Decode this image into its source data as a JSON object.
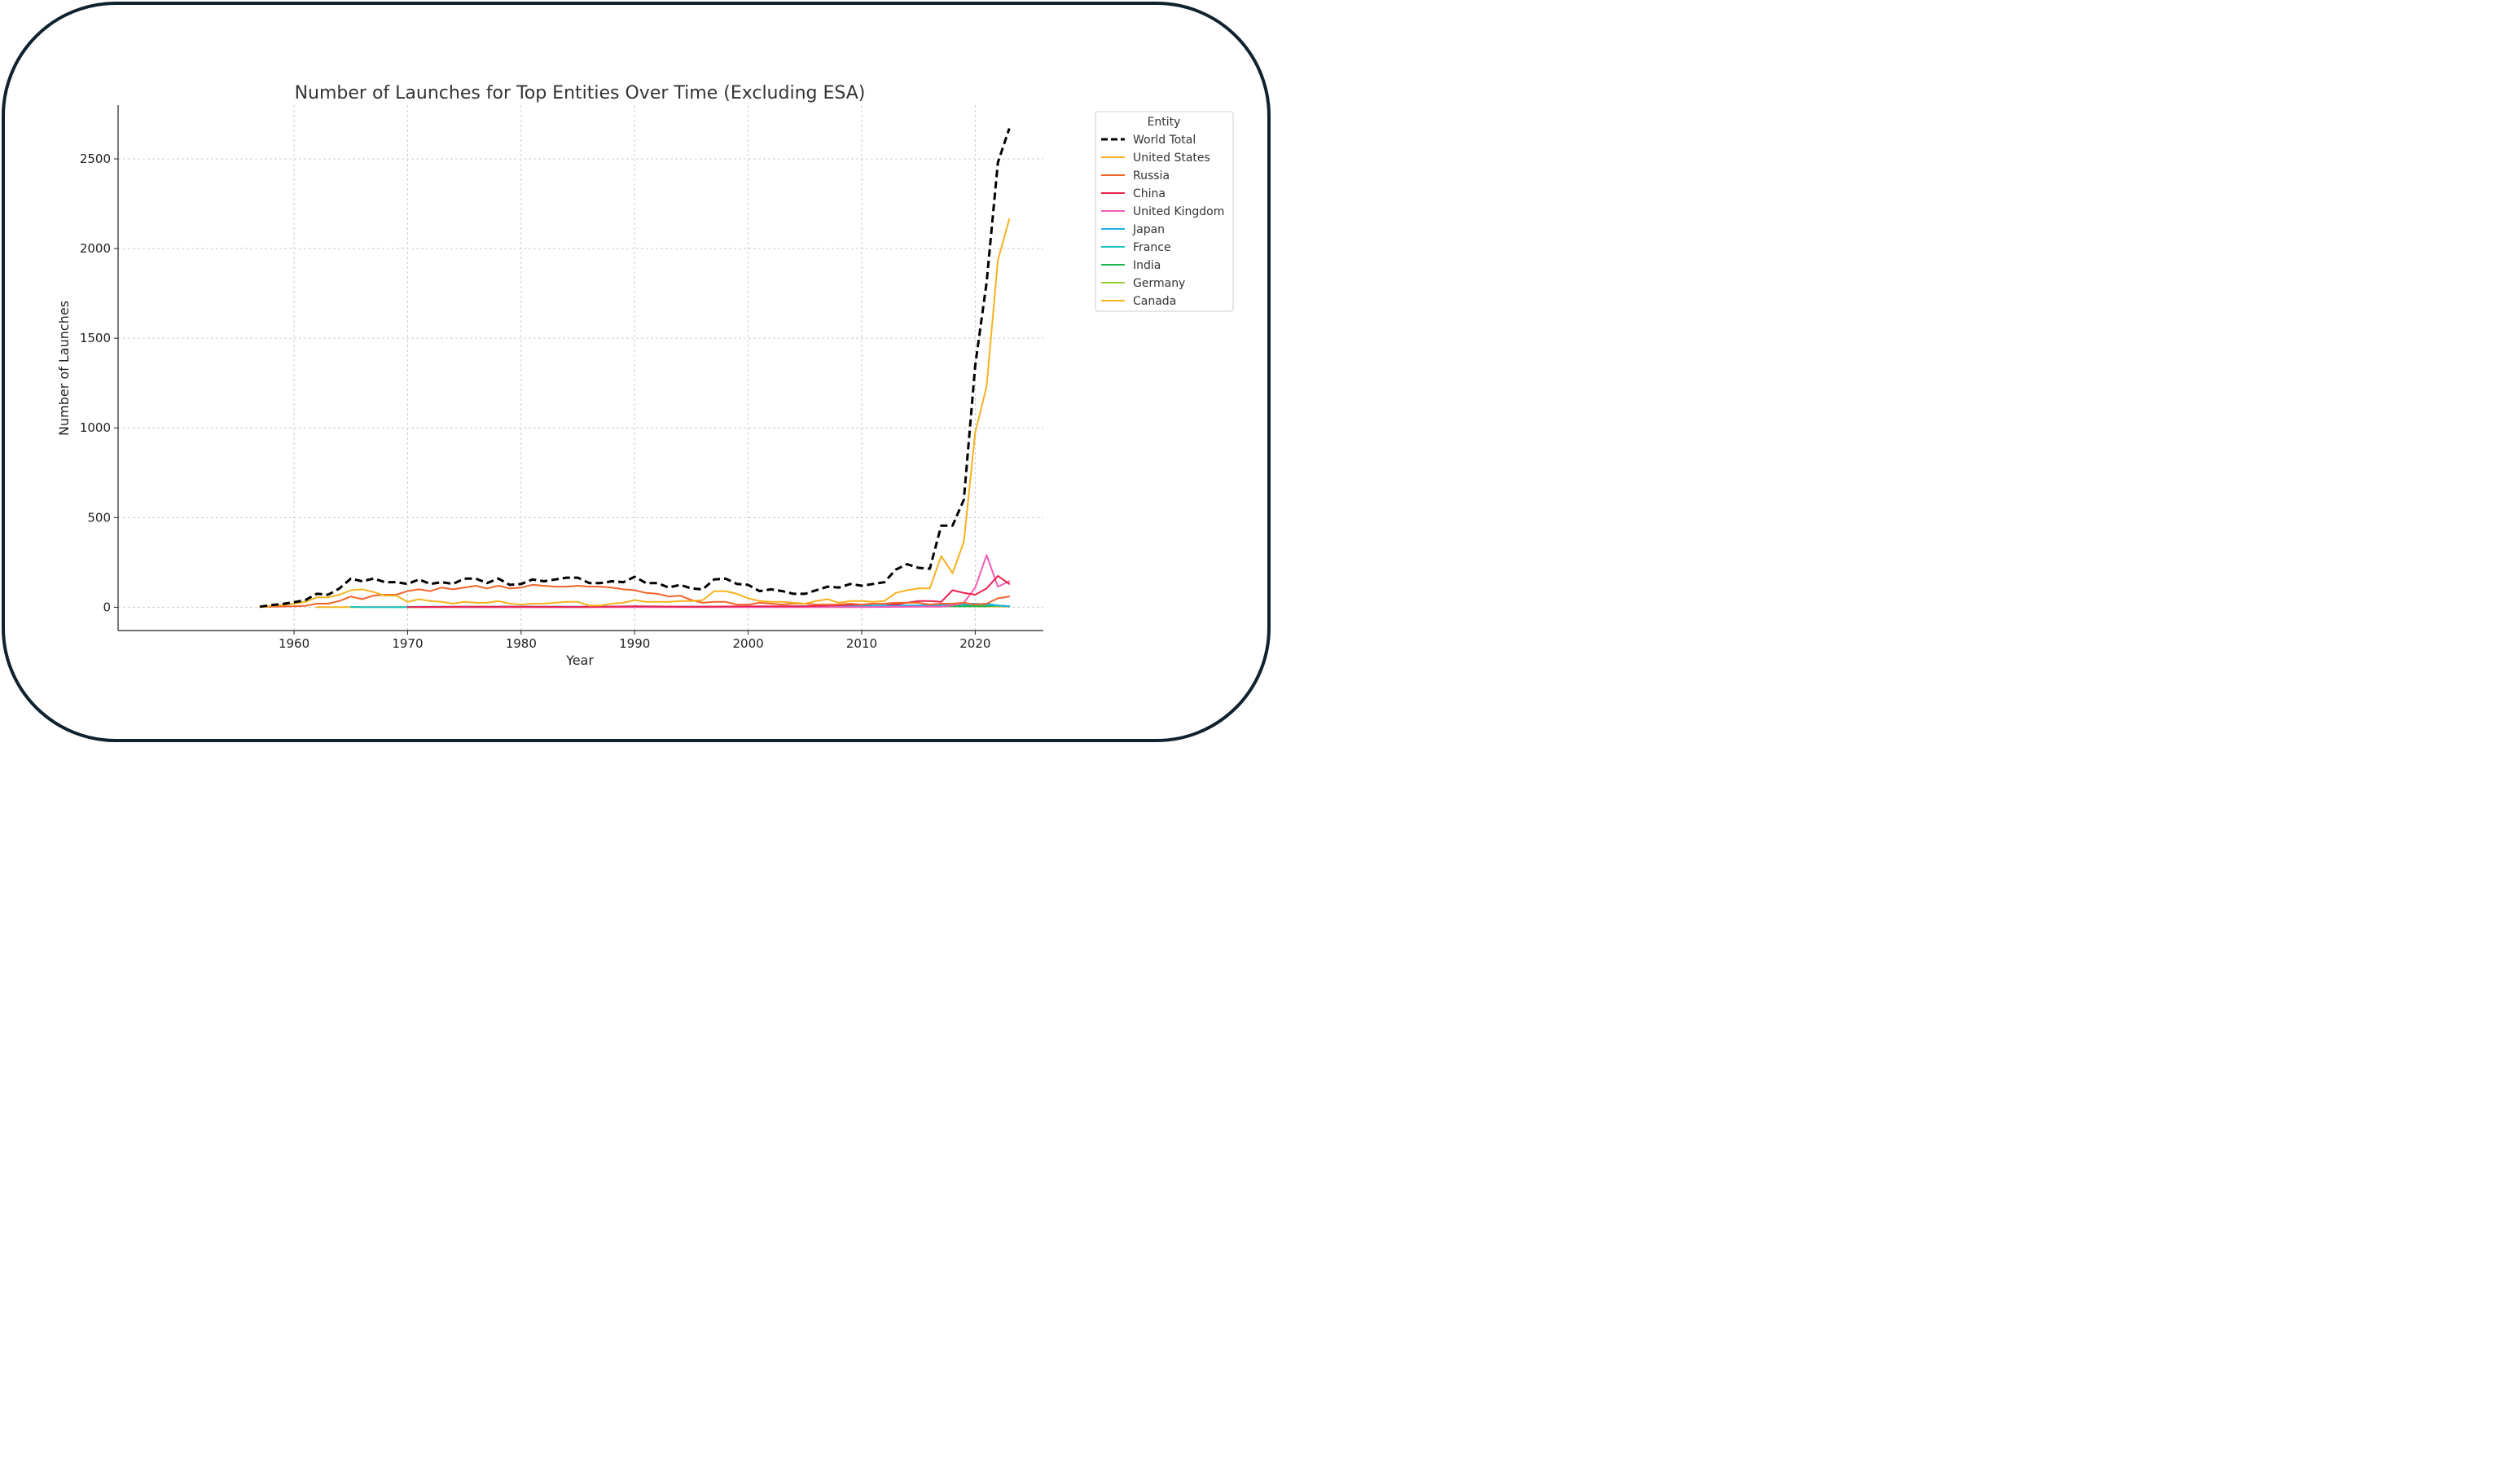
{
  "chart_data": {
    "type": "line",
    "title": "Number of Launches for Top Entities Over Time (Excluding ESA)",
    "xlabel": "Year",
    "ylabel": "Number of Launches",
    "xlim": [
      1944.5,
      2026
    ],
    "ylim": [
      -130,
      2800
    ],
    "xticks": [
      1960,
      1970,
      1980,
      1990,
      2000,
      2010,
      2020
    ],
    "yticks": [
      0,
      500,
      1000,
      1500,
      2000,
      2500
    ],
    "grid": true,
    "legend": {
      "title": "Entity",
      "position": "upper right, outside plot"
    },
    "series": [
      {
        "name": "World Total",
        "color": "#000000",
        "dash": true,
        "width": 3,
        "x": [
          1957,
          1958,
          1959,
          1960,
          1961,
          1962,
          1963,
          1964,
          1965,
          1966,
          1967,
          1968,
          1969,
          1970,
          1971,
          1972,
          1973,
          1974,
          1975,
          1976,
          1977,
          1978,
          1979,
          1980,
          1981,
          1982,
          1983,
          1984,
          1985,
          1986,
          1987,
          1988,
          1989,
          1990,
          1991,
          1992,
          1993,
          1994,
          1995,
          1996,
          1997,
          1998,
          1999,
          2000,
          2001,
          2002,
          2003,
          2004,
          2005,
          2006,
          2007,
          2008,
          2009,
          2010,
          2011,
          2012,
          2013,
          2014,
          2015,
          2016,
          2017,
          2018,
          2019,
          2020,
          2021,
          2022,
          2023
        ],
        "y": [
          3,
          12,
          18,
          28,
          40,
          75,
          70,
          105,
          160,
          145,
          160,
          140,
          140,
          130,
          155,
          130,
          140,
          130,
          160,
          160,
          135,
          160,
          125,
          130,
          155,
          145,
          155,
          165,
          165,
          135,
          135,
          145,
          140,
          170,
          135,
          135,
          110,
          125,
          105,
          100,
          155,
          160,
          130,
          125,
          90,
          100,
          90,
          75,
          75,
          95,
          115,
          110,
          130,
          120,
          130,
          140,
          210,
          240,
          220,
          215,
          455,
          455,
          600,
          1350,
          1810,
          2480,
          2670
        ]
      },
      {
        "name": "United States",
        "color": "#f5b21f",
        "width": 2,
        "x": [
          1957,
          1958,
          1959,
          1960,
          1961,
          1962,
          1963,
          1964,
          1965,
          1966,
          1967,
          1968,
          1969,
          1970,
          1971,
          1972,
          1973,
          1974,
          1975,
          1976,
          1977,
          1978,
          1979,
          1980,
          1981,
          1982,
          1983,
          1984,
          1985,
          1986,
          1987,
          1988,
          1989,
          1990,
          1991,
          1992,
          1993,
          1994,
          1995,
          1996,
          1997,
          1998,
          1999,
          2000,
          2001,
          2002,
          2003,
          2004,
          2005,
          2006,
          2007,
          2008,
          2009,
          2010,
          2011,
          2012,
          2013,
          2014,
          2015,
          2016,
          2017,
          2018,
          2019,
          2020,
          2021,
          2022,
          2023
        ],
        "y": [
          0,
          8,
          12,
          20,
          30,
          55,
          55,
          70,
          95,
          100,
          85,
          65,
          65,
          30,
          45,
          35,
          30,
          20,
          30,
          25,
          25,
          35,
          20,
          15,
          20,
          20,
          25,
          30,
          30,
          10,
          10,
          20,
          25,
          40,
          30,
          30,
          30,
          35,
          35,
          40,
          90,
          90,
          75,
          50,
          35,
          30,
          30,
          25,
          20,
          35,
          45,
          25,
          35,
          35,
          30,
          35,
          80,
          95,
          105,
          105,
          285,
          190,
          365,
          975,
          1230,
          1935,
          2165
        ]
      },
      {
        "name": "Russia",
        "color": "#f0642a",
        "width": 2,
        "x": [
          1957,
          1958,
          1959,
          1960,
          1961,
          1962,
          1963,
          1964,
          1965,
          1966,
          1967,
          1968,
          1969,
          1970,
          1971,
          1972,
          1973,
          1974,
          1975,
          1976,
          1977,
          1978,
          1979,
          1980,
          1981,
          1982,
          1983,
          1984,
          1985,
          1986,
          1987,
          1988,
          1989,
          1990,
          1991,
          1992,
          1993,
          1994,
          1995,
          1996,
          1997,
          1998,
          1999,
          2000,
          2001,
          2002,
          2003,
          2004,
          2005,
          2006,
          2007,
          2008,
          2009,
          2010,
          2011,
          2012,
          2013,
          2014,
          2015,
          2016,
          2017,
          2018,
          2019,
          2020,
          2021,
          2022,
          2023
        ],
        "y": [
          2,
          3,
          4,
          5,
          8,
          20,
          20,
          35,
          60,
          45,
          65,
          70,
          70,
          90,
          100,
          90,
          110,
          100,
          110,
          120,
          105,
          120,
          105,
          110,
          125,
          120,
          115,
          115,
          120,
          115,
          115,
          110,
          100,
          95,
          80,
          75,
          60,
          65,
          40,
          25,
          30,
          30,
          15,
          15,
          25,
          20,
          15,
          20,
          20,
          15,
          15,
          15,
          20,
          15,
          20,
          20,
          25,
          25,
          25,
          15,
          20,
          20,
          25,
          15,
          20,
          50,
          60
        ]
      },
      {
        "name": "China",
        "color": "#e8234e",
        "width": 2,
        "x": [
          1970,
          1975,
          1980,
          1985,
          1990,
          1995,
          2000,
          2005,
          2010,
          2011,
          2012,
          2013,
          2014,
          2015,
          2016,
          2017,
          2018,
          2019,
          2020,
          2021,
          2022,
          2023
        ],
        "y": [
          1,
          3,
          3,
          2,
          5,
          3,
          5,
          5,
          15,
          20,
          20,
          15,
          25,
          35,
          35,
          30,
          95,
          80,
          70,
          105,
          175,
          130
        ]
      },
      {
        "name": "United Kingdom",
        "color": "#f45bb8",
        "width": 2,
        "x": [
          1971,
          1980,
          1990,
          2000,
          2010,
          2015,
          2017,
          2018,
          2019,
          2020,
          2021,
          2022,
          2023
        ],
        "y": [
          1,
          0,
          1,
          1,
          1,
          3,
          3,
          10,
          25,
          110,
          290,
          115,
          145
        ]
      },
      {
        "name": "Japan",
        "color": "#1fb0e8",
        "width": 2,
        "x": [
          1970,
          1975,
          1977,
          1979,
          1985,
          1990,
          1995,
          2000,
          2005,
          2010,
          2015,
          2020,
          2022,
          2023
        ],
        "y": [
          2,
          3,
          3,
          4,
          3,
          5,
          3,
          2,
          5,
          10,
          10,
          20,
          10,
          5
        ]
      },
      {
        "name": "France",
        "color": "#19c2c2",
        "width": 2,
        "x": [
          1965,
          1966,
          1967,
          1970,
          1971,
          1975,
          1980,
          1985,
          1990,
          2000,
          2010,
          2015,
          2020,
          2021,
          2022,
          2023
        ],
        "y": [
          2,
          1,
          1,
          1,
          2,
          2,
          2,
          2,
          3,
          3,
          5,
          10,
          15,
          20,
          10,
          5
        ]
      },
      {
        "name": "India",
        "color": "#1db54f",
        "width": 2,
        "x": [
          1975,
          1980,
          1985,
          1990,
          1995,
          2000,
          2005,
          2010,
          2015,
          2020,
          2021,
          2022,
          2023
        ],
        "y": [
          1,
          2,
          1,
          3,
          2,
          3,
          5,
          5,
          5,
          5,
          5,
          10,
          5
        ]
      },
      {
        "name": "Germany",
        "color": "#9ac93a",
        "width": 2,
        "x": [
          1969,
          1970,
          1975,
          1980,
          1990,
          2000,
          2010,
          2015,
          2020,
          2023
        ],
        "y": [
          1,
          1,
          1,
          1,
          2,
          2,
          5,
          10,
          10,
          5
        ]
      },
      {
        "name": "Canada",
        "color": "#f7b41f",
        "width": 2,
        "x": [
          1962,
          1965,
          1969,
          1971,
          1973,
          1975,
          1980,
          1985,
          1990,
          1995,
          2000,
          2005,
          2010,
          2015,
          2020,
          2023
        ],
        "y": [
          1,
          1,
          1,
          1,
          1,
          1,
          1,
          1,
          2,
          2,
          2,
          3,
          3,
          5,
          5,
          3
        ]
      }
    ]
  }
}
